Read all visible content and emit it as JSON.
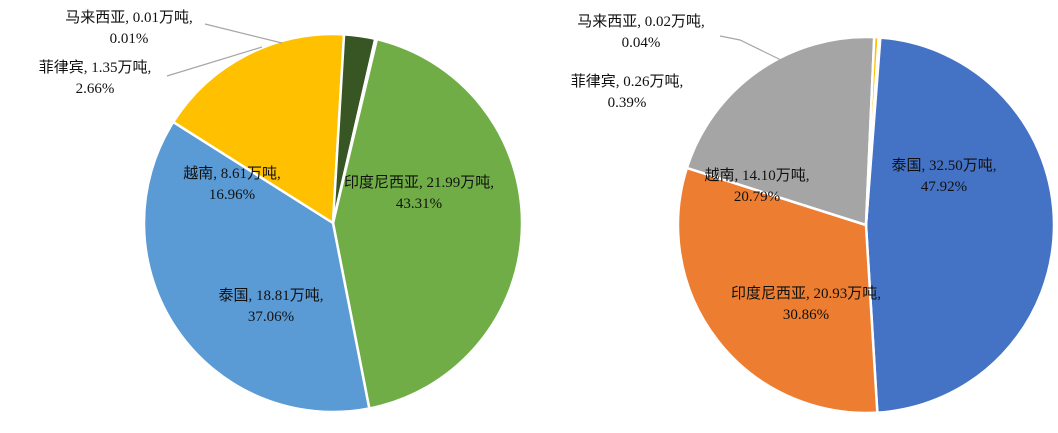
{
  "chart_data": [
    {
      "type": "pie",
      "title": "",
      "slices": [
        {
          "name": "印度尼西亚",
          "value": 21.99,
          "pct": "43.31%",
          "value_label": "印度尼西亚, 21.99万吨,",
          "pct_label": "43.31%",
          "color": "#70ad47"
        },
        {
          "name": "泰国",
          "value": 18.81,
          "pct": "37.06%",
          "value_label": "泰国, 18.81万吨,",
          "pct_label": "37.06%",
          "color": "#5b9bd5"
        },
        {
          "name": "越南",
          "value": 8.61,
          "pct": "16.96%",
          "value_label": "越南, 8.61万吨,",
          "pct_label": "16.96%",
          "color": "#ffc000"
        },
        {
          "name": "菲律宾",
          "value": 1.35,
          "pct": "2.66%",
          "value_label": "菲律宾, 1.35万吨,",
          "pct_label": "2.66%",
          "color": "#375623"
        },
        {
          "name": "马来西亚",
          "value": 0.01,
          "pct": "0.01%",
          "value_label": "马来西亚, 0.01万吨,",
          "pct_label": "0.01%",
          "color": "#264478"
        }
      ]
    },
    {
      "type": "pie",
      "title": "",
      "slices": [
        {
          "name": "泰国",
          "value": 32.5,
          "pct": "47.92%",
          "value_label": "泰国, 32.50万吨,",
          "pct_label": "47.92%",
          "color": "#4472c4"
        },
        {
          "name": "印度尼西亚",
          "value": 20.93,
          "pct": "30.86%",
          "value_label": "印度尼西亚, 20.93万吨,",
          "pct_label": "30.86%",
          "color": "#ed7d31"
        },
        {
          "name": "越南",
          "value": 14.1,
          "pct": "20.79%",
          "value_label": "越南, 14.10万吨,",
          "pct_label": "20.79%",
          "color": "#a5a5a5"
        },
        {
          "name": "菲律宾",
          "value": 0.26,
          "pct": "0.39%",
          "value_label": "菲律宾, 0.26万吨,",
          "pct_label": "0.39%",
          "color": "#ffc000"
        },
        {
          "name": "马来西亚",
          "value": 0.02,
          "pct": "0.04%",
          "value_label": "马来西亚, 0.02万吨,",
          "pct_label": "0.04%",
          "color": "#5b9bd5"
        }
      ]
    }
  ]
}
